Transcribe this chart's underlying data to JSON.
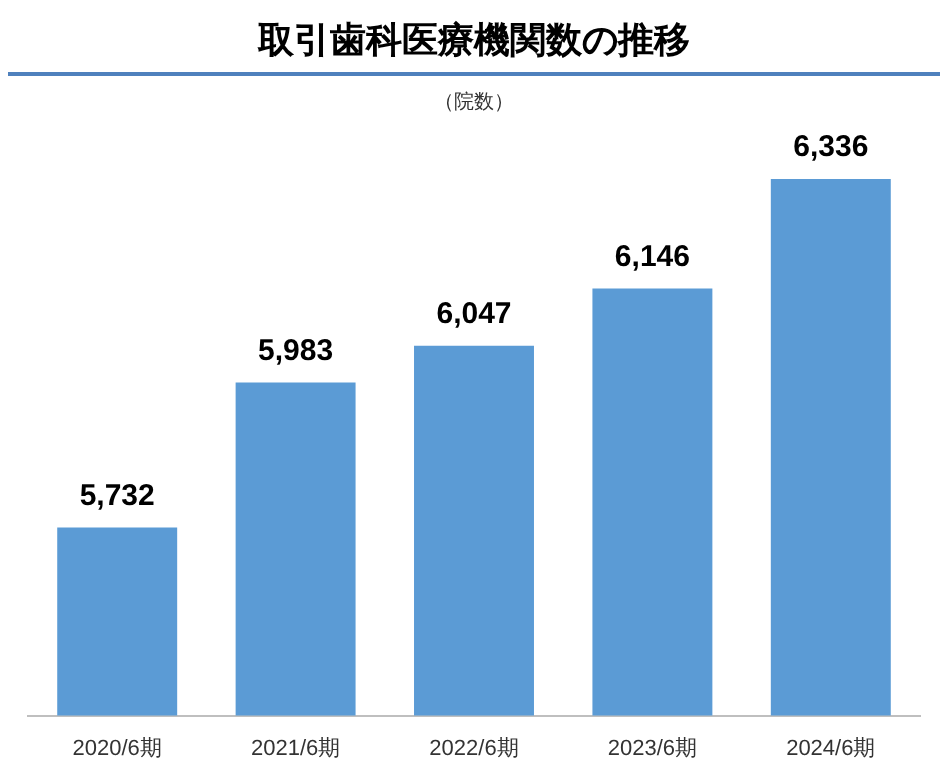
{
  "chart_data": {
    "type": "bar",
    "title": "取引歯科医療機関数の推移",
    "subtitle": "（院数）",
    "categories": [
      "2020/6期",
      "2021/6期",
      "2022/6期",
      "2023/6期",
      "2024/6期"
    ],
    "values": [
      5732,
      5983,
      6047,
      6146,
      6336
    ],
    "color": "#5b9bd5",
    "value_labels": [
      "5,732",
      "5,983",
      "6,047",
      "6,146",
      "6,336"
    ],
    "grid": false,
    "legend": false,
    "tick_labels": "x"
  }
}
